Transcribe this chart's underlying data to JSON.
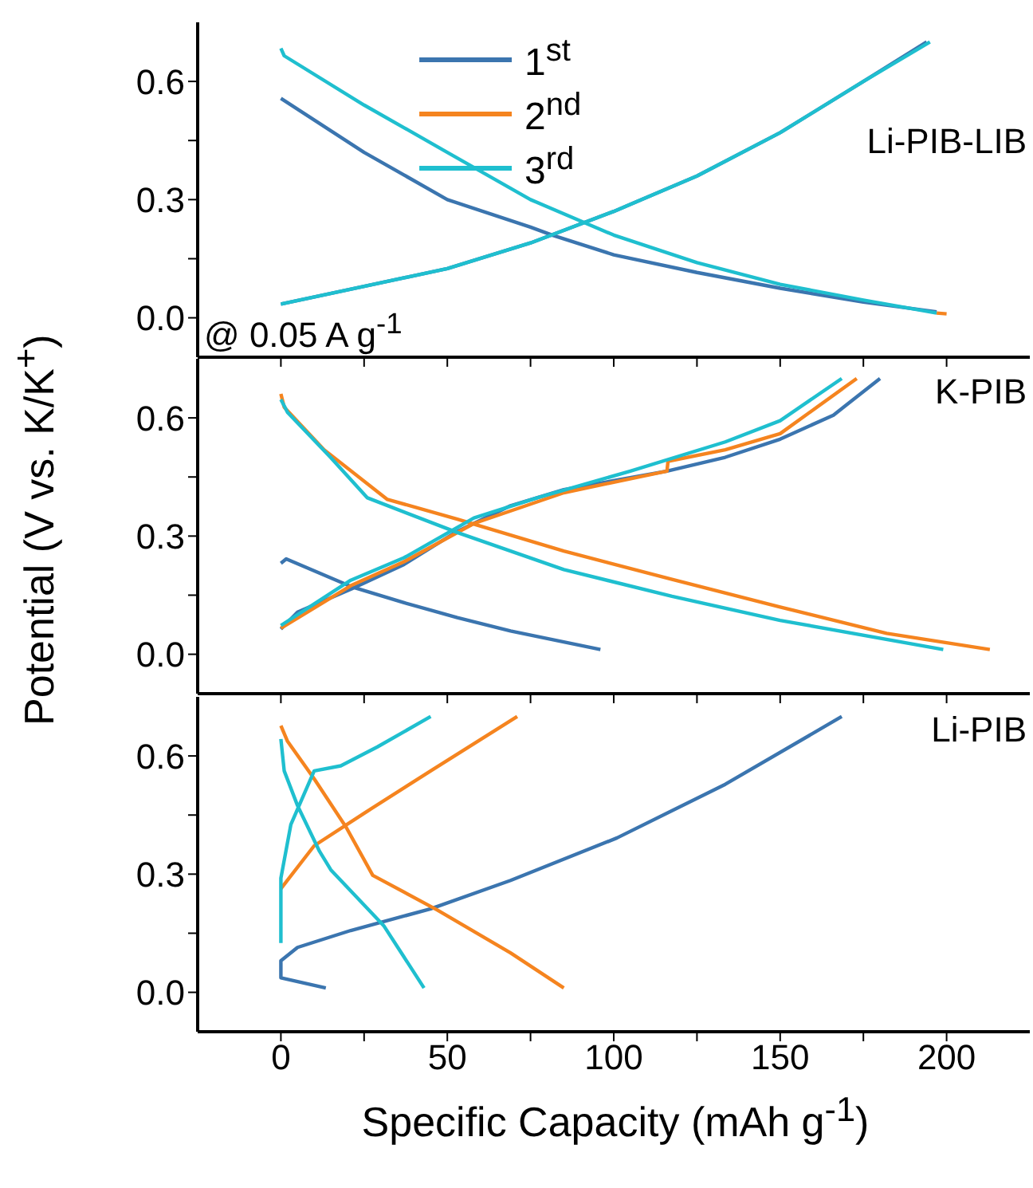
{
  "chart_data": [
    {
      "type": "line",
      "annotations": [
        "Li-PIB-LIB",
        "@ 0.05 A g$^{-1}$"
      ],
      "legend": "top",
      "tick_labels": "y",
      "marker": "none",
      "line_style": "solid",
      "xlim": [
        -25,
        225
      ],
      "xticks": [
        {
          "value": 0,
          "label": null
        },
        {
          "value": 25,
          "label": null
        },
        {
          "value": 50,
          "label": null
        },
        {
          "value": 75,
          "label": null
        },
        {
          "value": 100,
          "label": null
        },
        {
          "value": 125,
          "label": null
        },
        {
          "value": 150,
          "label": null
        },
        {
          "value": 175,
          "label": null
        },
        {
          "value": 200,
          "label": null
        }
      ],
      "ylim": [
        -0.1,
        0.75
      ],
      "yticks": [
        {
          "value": 0,
          "label": "0.0"
        },
        {
          "value": 0.15,
          "label": null
        },
        {
          "value": 0.3,
          "label": "0.3"
        },
        {
          "value": 0.45,
          "label": null
        },
        {
          "value": 0.6,
          "label": "0.6"
        }
      ],
      "series": [
        {
          "name": "1$^{st}$",
          "color": "#3b75af",
          "x": [
            0,
            25,
            50,
            75,
            81.5,
            100,
            125,
            150,
            175,
            197,
            null,
            0,
            25,
            50,
            75,
            100,
            125,
            150,
            175,
            194
          ],
          "values": [
            0.557,
            0.42,
            0.3,
            0.23,
            0.21,
            0.16,
            0.115,
            0.075,
            0.04,
            0.015,
            null,
            0.035,
            0.08,
            0.125,
            0.19,
            0.27,
            0.36,
            0.47,
            0.6,
            0.7
          ]
        },
        {
          "name": "2$^{nd}$",
          "color": "#f5841f",
          "x": [
            197,
            200
          ],
          "values": [
            0.012,
            0.01
          ]
        },
        {
          "name": "3$^{rd}$",
          "color": "#1fbfcf",
          "x": [
            0,
            1,
            25,
            50,
            75,
            100,
            125,
            150,
            175,
            197,
            null,
            0,
            25,
            50,
            75,
            100,
            125,
            150,
            175,
            195
          ],
          "values": [
            0.684,
            0.665,
            0.54,
            0.42,
            0.3,
            0.21,
            0.14,
            0.085,
            0.045,
            0.012,
            null,
            0.035,
            0.08,
            0.125,
            0.19,
            0.27,
            0.36,
            0.47,
            0.6,
            0.7
          ]
        }
      ]
    },
    {
      "type": "line",
      "annotations": [
        "K-PIB"
      ],
      "ylabel": "Potential (V vs. K/K$^{+}$)",
      "tick_labels": "y",
      "marker": "none",
      "line_style": "solid",
      "xlim": [
        -25,
        225
      ],
      "xticks": [
        {
          "value": 0,
          "label": null
        },
        {
          "value": 25,
          "label": null
        },
        {
          "value": 50,
          "label": null
        },
        {
          "value": 75,
          "label": null
        },
        {
          "value": 100,
          "label": null
        },
        {
          "value": 125,
          "label": null
        },
        {
          "value": 150,
          "label": null
        },
        {
          "value": 175,
          "label": null
        },
        {
          "value": 200,
          "label": null
        }
      ],
      "ylim": [
        -0.1,
        0.75
      ],
      "yticks": [
        {
          "value": 0,
          "label": "0.0"
        },
        {
          "value": 0.15,
          "label": null
        },
        {
          "value": 0.3,
          "label": "0.3"
        },
        {
          "value": 0.45,
          "label": null
        },
        {
          "value": 0.6,
          "label": "0.6"
        }
      ],
      "series": [
        {
          "color": "#3b75af",
          "x": [
            0,
            1.6,
            21,
            37,
            53,
            69,
            96,
            null,
            0,
            5,
            21,
            37,
            53,
            69,
            85,
            116,
            133.5,
            150,
            166,
            180
          ],
          "values": [
            0.231,
            0.242,
            0.172,
            0.131,
            0.093,
            0.059,
            0.012,
            null,
            0.064,
            0.107,
            0.165,
            0.228,
            0.312,
            0.377,
            0.418,
            0.465,
            0.5,
            0.546,
            0.607,
            0.7
          ]
        },
        {
          "color": "#f5841f",
          "x": [
            0,
            1,
            13,
            32,
            53,
            85,
            117.5,
            150,
            182,
            213,
            null,
            0,
            21,
            37,
            58,
            85,
            116,
            116.3,
            133.5,
            150,
            173
          ],
          "values": [
            0.661,
            0.627,
            0.519,
            0.393,
            0.343,
            0.262,
            0.19,
            0.12,
            0.053,
            0.012,
            null,
            0.066,
            0.174,
            0.235,
            0.332,
            0.41,
            0.465,
            0.49,
            0.519,
            0.56,
            0.7
          ]
        },
        {
          "color": "#1fbfcf",
          "x": [
            0,
            2,
            15,
            26,
            53,
            85,
            117.5,
            150,
            199,
            null,
            0,
            21,
            37,
            58,
            77,
            105,
            133.5,
            150,
            168.5
          ],
          "values": [
            0.647,
            0.614,
            0.499,
            0.397,
            0.309,
            0.215,
            0.147,
            0.086,
            0.012,
            null,
            0.073,
            0.188,
            0.245,
            0.346,
            0.397,
            0.465,
            0.539,
            0.593,
            0.7
          ]
        }
      ]
    },
    {
      "type": "line",
      "annotations": [
        "Li-PIB"
      ],
      "xlabel": "Specific Capacity (mAh g$^{-1}$)",
      "marker": "none",
      "line_style": "solid",
      "xlim": [
        -25,
        225
      ],
      "xticks": [
        {
          "value": 0,
          "label": "0"
        },
        {
          "value": 25,
          "label": null
        },
        {
          "value": 50,
          "label": "50"
        },
        {
          "value": 75,
          "label": null
        },
        {
          "value": 100,
          "label": "100"
        },
        {
          "value": 125,
          "label": null
        },
        {
          "value": 150,
          "label": "150"
        },
        {
          "value": 175,
          "label": null
        },
        {
          "value": 200,
          "label": "200"
        }
      ],
      "ylim": [
        -0.1,
        0.75
      ],
      "yticks": [
        {
          "value": 0,
          "label": "0.0"
        },
        {
          "value": 0.15,
          "label": null
        },
        {
          "value": 0.3,
          "label": "0.3"
        },
        {
          "value": 0.45,
          "label": null
        },
        {
          "value": 0.6,
          "label": "0.6"
        }
      ],
      "series": [
        {
          "color": "#3b75af",
          "x": [
            13.5,
            0,
            0,
            5,
            21,
            45,
            69,
            101,
            133.5,
            168.5
          ],
          "values": [
            0.011,
            0.037,
            0.08,
            0.114,
            0.157,
            0.212,
            0.284,
            0.392,
            0.528,
            0.7
          ]
        },
        {
          "color": "#f5841f",
          "x": [
            0,
            2,
            10,
            19.6,
            27.6,
            47,
            69,
            85,
            null,
            0,
            10,
            26,
            45,
            71
          ],
          "values": [
            0.677,
            0.637,
            0.542,
            0.419,
            0.297,
            0.209,
            0.1,
            0.011,
            null,
            0.263,
            0.372,
            0.46,
            0.562,
            0.7
          ]
        },
        {
          "color": "#1fbfcf",
          "x": [
            0,
            1,
            5,
            11.6,
            15,
            31,
            43,
            null,
            0,
            0,
            3,
            10,
            18,
            29,
            45
          ],
          "values": [
            0.643,
            0.562,
            0.474,
            0.358,
            0.311,
            0.168,
            0.011,
            null,
            0.125,
            0.29,
            0.426,
            0.562,
            0.575,
            0.623,
            0.7
          ]
        }
      ]
    }
  ]
}
